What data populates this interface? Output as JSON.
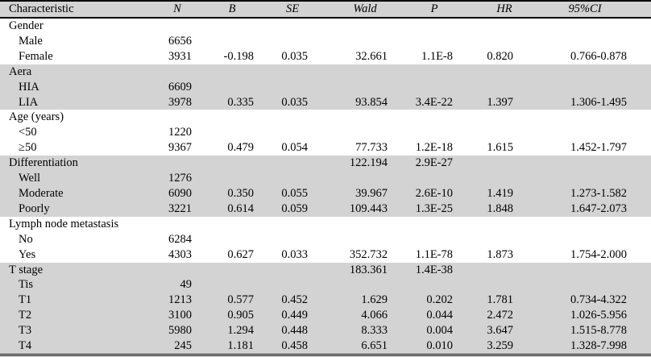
{
  "table": {
    "colors": {
      "shaded_row_bg": "#d3d3d3",
      "rule": "#000000",
      "text": "#000000"
    },
    "columns": {
      "label": "Characteristic",
      "n": "N",
      "b": "B",
      "se": "SE",
      "wald": "Wald",
      "p": "P",
      "hr": "HR",
      "ci": "95%CI"
    },
    "rows": [
      {
        "label": "Gender",
        "level": 0,
        "shaded": false,
        "n": "",
        "b": "",
        "se": "",
        "wald": "",
        "p": "",
        "hr": "",
        "ci": ""
      },
      {
        "label": "Male",
        "level": 1,
        "shaded": false,
        "n": "6656",
        "b": "",
        "se": "",
        "wald": "",
        "p": "",
        "hr": "",
        "ci": ""
      },
      {
        "label": "Female",
        "level": 1,
        "shaded": false,
        "n": "3931",
        "b": "-0.198",
        "se": "0.035",
        "wald": "32.661",
        "p": "1.1E-8",
        "hr": "0.820",
        "ci": "0.766-0.878"
      },
      {
        "label": "Aera",
        "level": 0,
        "shaded": true,
        "n": "",
        "b": "",
        "se": "",
        "wald": "",
        "p": "",
        "hr": "",
        "ci": ""
      },
      {
        "label": "HIA",
        "level": 1,
        "shaded": true,
        "n": "6609",
        "b": "",
        "se": "",
        "wald": "",
        "p": "",
        "hr": "",
        "ci": ""
      },
      {
        "label": "LIA",
        "level": 1,
        "shaded": true,
        "n": "3978",
        "b": "0.335",
        "se": "0.035",
        "wald": "93.854",
        "p": "3.4E-22",
        "hr": "1.397",
        "ci": "1.306-1.495"
      },
      {
        "label": "Age (years)",
        "level": 0,
        "shaded": false,
        "n": "",
        "b": "",
        "se": "",
        "wald": "",
        "p": "",
        "hr": "",
        "ci": ""
      },
      {
        "label": "<50",
        "level": 1,
        "shaded": false,
        "n": "1220",
        "b": "",
        "se": "",
        "wald": "",
        "p": "",
        "hr": "",
        "ci": ""
      },
      {
        "label": "≥50",
        "level": 1,
        "shaded": false,
        "n": "9367",
        "b": "0.479",
        "se": "0.054",
        "wald": "77.733",
        "p": "1.2E-18",
        "hr": "1.615",
        "ci": "1.452-1.797"
      },
      {
        "label": "Differentiation",
        "level": 0,
        "shaded": true,
        "n": "",
        "b": "",
        "se": "",
        "wald": "122.194",
        "p": "2.9E-27",
        "hr": "",
        "ci": ""
      },
      {
        "label": "Well",
        "level": 1,
        "shaded": true,
        "n": "1276",
        "b": "",
        "se": "",
        "wald": "",
        "p": "",
        "hr": "",
        "ci": ""
      },
      {
        "label": "Moderate",
        "level": 1,
        "shaded": true,
        "n": "6090",
        "b": "0.350",
        "se": "0.055",
        "wald": "39.967",
        "p": "2.6E-10",
        "hr": "1.419",
        "ci": "1.273-1.582"
      },
      {
        "label": "Poorly",
        "level": 1,
        "shaded": true,
        "n": "3221",
        "b": "0.614",
        "se": "0.059",
        "wald": "109.443",
        "p": "1.3E-25",
        "hr": "1.848",
        "ci": "1.647-2.073"
      },
      {
        "label": "Lymph node metastasis",
        "level": 0,
        "shaded": false,
        "n": "",
        "b": "",
        "se": "",
        "wald": "",
        "p": "",
        "hr": "",
        "ci": ""
      },
      {
        "label": "No",
        "level": 1,
        "shaded": false,
        "n": "6284",
        "b": "",
        "se": "",
        "wald": "",
        "p": "",
        "hr": "",
        "ci": ""
      },
      {
        "label": "Yes",
        "level": 1,
        "shaded": false,
        "n": "4303",
        "b": "0.627",
        "se": "0.033",
        "wald": "352.732",
        "p": "1.1E-78",
        "hr": "1.873",
        "ci": "1.754-2.000"
      },
      {
        "label": "T stage",
        "level": 0,
        "shaded": true,
        "n": "",
        "b": "",
        "se": "",
        "wald": "183.361",
        "p": "1.4E-38",
        "hr": "",
        "ci": ""
      },
      {
        "label": "Tis",
        "level": 1,
        "shaded": true,
        "n": "49",
        "b": "",
        "se": "",
        "wald": "",
        "p": "",
        "hr": "",
        "ci": ""
      },
      {
        "label": "T1",
        "level": 1,
        "shaded": true,
        "n": "1213",
        "b": "0.577",
        "se": "0.452",
        "wald": "1.629",
        "p": "0.202",
        "hr": "1.781",
        "ci": "0.734-4.322"
      },
      {
        "label": "T2",
        "level": 1,
        "shaded": true,
        "n": "3100",
        "b": "0.905",
        "se": "0.449",
        "wald": "4.066",
        "p": "0.044",
        "hr": "2.472",
        "ci": "1.026-5.956"
      },
      {
        "label": "T3",
        "level": 1,
        "shaded": true,
        "n": "5980",
        "b": "1.294",
        "se": "0.448",
        "wald": "8.333",
        "p": "0.004",
        "hr": "3.647",
        "ci": "1.515-8.778"
      },
      {
        "label": "T4",
        "level": 1,
        "shaded": true,
        "n": "245",
        "b": "1.181",
        "se": "0.458",
        "wald": "6.651",
        "p": "0.010",
        "hr": "3.259",
        "ci": "1.328-7.998"
      }
    ]
  }
}
